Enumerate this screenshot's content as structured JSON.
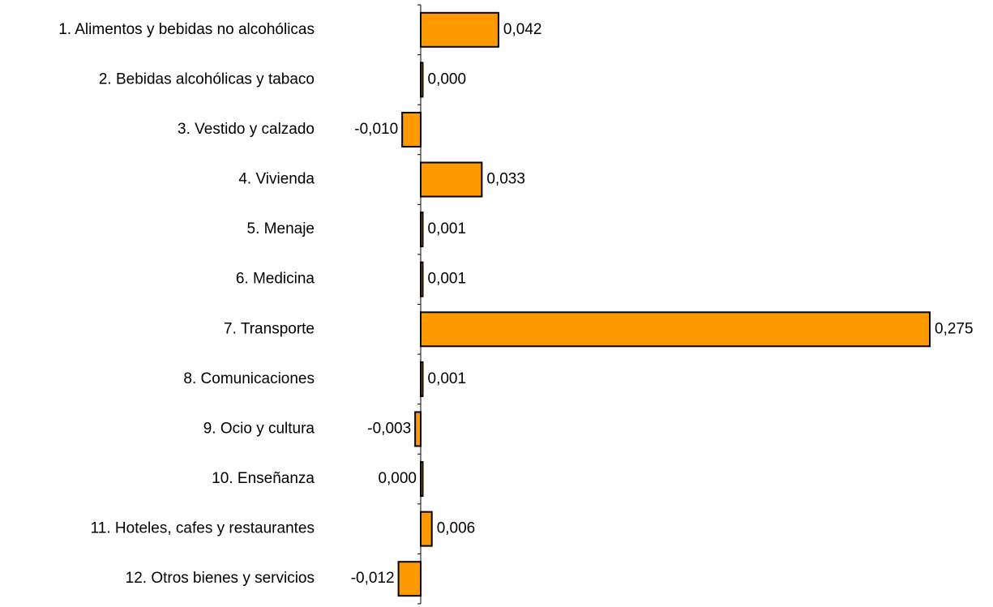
{
  "chart_data": {
    "type": "bar",
    "orientation": "horizontal",
    "categories": [
      "1. Alimentos y bebidas no alcohólicas",
      "2. Bebidas alcohólicas y tabaco",
      "3. Vestido y calzado",
      "4. Vivienda",
      "5. Menaje",
      "6. Medicina",
      "7. Transporte",
      "8. Comunicaciones",
      "9. Ocio y cultura",
      "10. Enseñanza",
      "11. Hoteles, cafes y restaurantes",
      "12. Otros bienes y servicios"
    ],
    "values": [
      0.042,
      0.0,
      -0.01,
      0.033,
      0.001,
      0.001,
      0.275,
      0.001,
      -0.003,
      0.0,
      0.006,
      -0.012
    ],
    "value_labels": [
      "0,042",
      "0,000",
      "-0,010",
      "0,033",
      "0,001",
      "0,001",
      "0,275",
      "0,001",
      "-0,003",
      "0,000",
      "0,006",
      "-0,012"
    ],
    "title": "",
    "xlabel": "",
    "ylabel": "",
    "bar_color": "#FF9900",
    "bar_edge_color": "#000000",
    "grid": false,
    "legend": "none"
  }
}
